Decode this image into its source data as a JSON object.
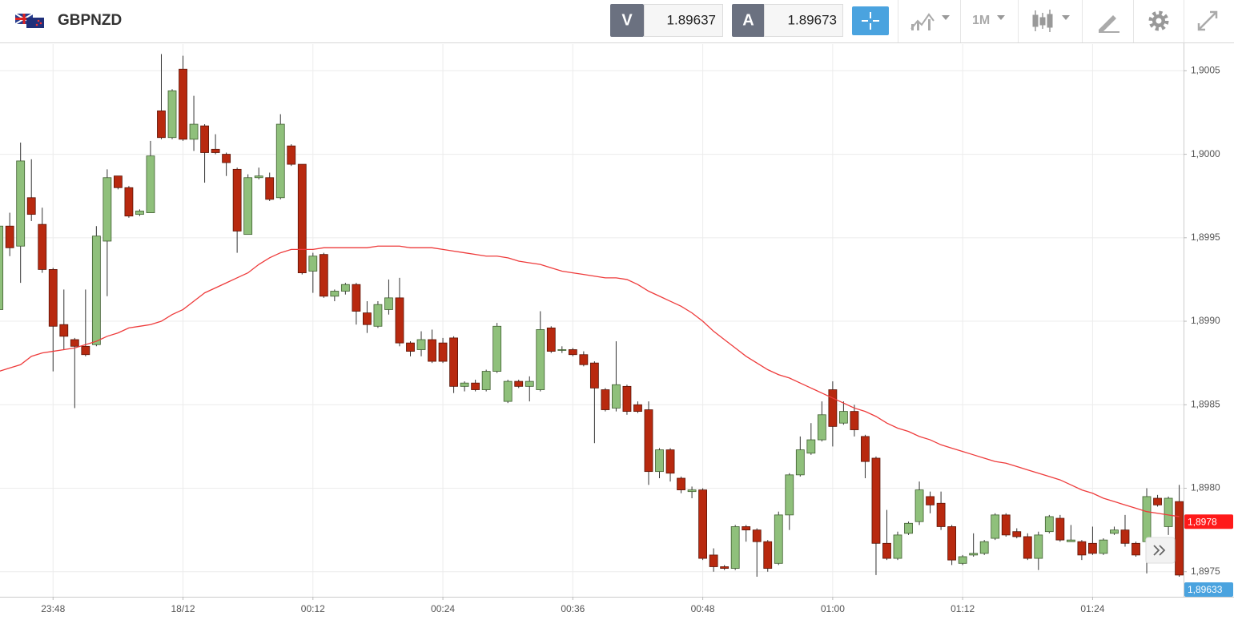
{
  "header": {
    "symbol": "GBPNZD",
    "bid_label": "V",
    "bid": "1.89637",
    "ask_label": "A",
    "ask": "1.89673",
    "timeframe": "1M"
  },
  "chart_data": {
    "type": "candlestick",
    "x": [
      -17,
      -16,
      -15,
      -14,
      -13,
      -12,
      -11,
      -10,
      -9,
      -8,
      -7,
      -6,
      -5,
      -4,
      -3,
      -2,
      -1,
      0,
      1,
      2,
      3,
      4,
      5,
      6,
      7,
      8,
      9,
      10,
      11,
      12,
      13,
      14,
      15,
      16,
      17,
      18,
      19,
      20,
      21,
      22,
      23,
      24,
      25,
      26,
      27,
      28,
      29,
      30,
      31,
      32,
      33,
      34,
      35,
      36,
      37,
      38,
      39,
      40,
      41,
      42,
      43,
      44,
      45,
      46,
      47,
      48,
      49,
      50,
      51,
      52,
      53,
      54,
      55,
      56,
      57,
      58,
      59,
      60,
      61,
      62,
      63,
      64,
      65,
      66,
      67,
      68,
      69,
      70,
      71,
      72,
      73,
      74,
      75,
      76,
      77,
      78,
      79,
      80,
      81,
      82,
      83,
      84,
      85,
      86,
      87,
      88,
      89,
      90,
      91,
      92
    ],
    "open": [
      1.89907,
      1.89957,
      1.89945,
      1.89974,
      1.89958,
      1.89931,
      1.89898,
      1.89889,
      1.89885,
      1.89886,
      1.89948,
      1.89987,
      1.8998,
      1.89964,
      1.89965,
      1.90026,
      1.9001,
      1.90051,
      1.90009,
      1.90017,
      1.90003,
      1.9,
      1.89991,
      1.89952,
      1.89986,
      1.89986,
      1.89974,
      1.90005,
      1.89994,
      1.8993,
      1.8994,
      1.89915,
      1.89918,
      1.89922,
      1.89905,
      1.89897,
      1.89907,
      1.89914,
      1.89887,
      1.89883,
      1.89889,
      1.89887,
      1.8989,
      1.89861,
      1.89863,
      1.89859,
      1.8987,
      1.89852,
      1.89864,
      1.89861,
      1.89859,
      1.89896,
      1.89883,
      1.89883,
      1.8988,
      1.89875,
      1.89859,
      1.89848,
      1.89861,
      1.8985,
      1.89847,
      1.8981,
      1.89823,
      1.89806,
      1.89798,
      1.89799,
      1.8976,
      1.89753,
      1.89752,
      1.89777,
      1.89775,
      1.89768,
      1.89755,
      1.89784,
      1.89808,
      1.89821,
      1.89829,
      1.89859,
      1.89839,
      1.89846,
      1.89831,
      1.89818,
      1.89767,
      1.89758,
      1.89773,
      1.8978,
      1.89795,
      1.89791,
      1.89777,
      1.89755,
      1.8976,
      1.89761,
      1.8977,
      1.89784,
      1.89774,
      1.89771,
      1.89758,
      1.89774,
      1.89782,
      1.89768,
      1.89768,
      1.89767,
      1.89761,
      1.89773,
      1.89775,
      1.89767,
      1.89768,
      1.89794,
      1.89777,
      1.89792
    ],
    "high": [
      1.89958,
      1.89965,
      1.90007,
      1.89997,
      1.89968,
      1.89932,
      1.89919,
      1.8989,
      1.89919,
      1.89957,
      1.89991,
      1.89987,
      1.89981,
      1.89967,
      1.90008,
      1.9006,
      1.90039,
      1.90059,
      1.90035,
      1.90018,
      1.90012,
      1.90001,
      1.89992,
      1.89988,
      1.89992,
      1.89989,
      1.90024,
      1.90006,
      1.89994,
      1.89941,
      1.89941,
      1.89919,
      1.89923,
      1.89923,
      1.89912,
      1.89912,
      1.89925,
      1.89926,
      1.89888,
      1.89894,
      1.89895,
      1.8989,
      1.89891,
      1.89864,
      1.89865,
      1.89871,
      1.89899,
      1.89865,
      1.89865,
      1.89867,
      1.89906,
      1.89897,
      1.89885,
      1.89884,
      1.89882,
      1.89876,
      1.8986,
      1.89888,
      1.89862,
      1.89852,
      1.89852,
      1.89824,
      1.89824,
      1.89807,
      1.89801,
      1.898,
      1.89764,
      1.89754,
      1.89778,
      1.89778,
      1.89776,
      1.89769,
      1.89786,
      1.89809,
      1.89831,
      1.89839,
      1.89852,
      1.89864,
      1.89852,
      1.8985,
      1.89832,
      1.89819,
      1.89787,
      1.89774,
      1.8978,
      1.89804,
      1.89798,
      1.89798,
      1.89778,
      1.8976,
      1.89773,
      1.89769,
      1.89785,
      1.89785,
      1.89776,
      1.89773,
      1.89774,
      1.89784,
      1.89784,
      1.89778,
      1.89769,
      1.89777,
      1.8977,
      1.89777,
      1.89784,
      1.89768,
      1.898,
      1.89796,
      1.89795,
      1.89802
    ],
    "low": [
      1.89905,
      1.89939,
      1.89923,
      1.8996,
      1.89929,
      1.8987,
      1.89883,
      1.89848,
      1.89879,
      1.89885,
      1.89915,
      1.89979,
      1.89962,
      1.89963,
      1.89965,
      1.90009,
      1.90009,
      1.90008,
      1.90002,
      1.89983,
      1.9,
      1.89987,
      1.89941,
      1.89952,
      1.89985,
      1.89972,
      1.89973,
      1.89993,
      1.89928,
      1.89917,
      1.89914,
      1.89912,
      1.89916,
      1.89898,
      1.89893,
      1.89896,
      1.89904,
      1.89885,
      1.89879,
      1.89879,
      1.89875,
      1.89875,
      1.89857,
      1.89858,
      1.89858,
      1.89858,
      1.89869,
      1.89851,
      1.8986,
      1.89852,
      1.89858,
      1.89881,
      1.89881,
      1.89879,
      1.89873,
      1.89827,
      1.89846,
      1.89846,
      1.89844,
      1.89845,
      1.89802,
      1.89806,
      1.89804,
      1.89797,
      1.89794,
      1.89757,
      1.8975,
      1.89751,
      1.89751,
      1.89768,
      1.89747,
      1.8975,
      1.89754,
      1.89775,
      1.89807,
      1.8982,
      1.89828,
      1.89825,
      1.89838,
      1.89831,
      1.89806,
      1.89748,
      1.89757,
      1.89757,
      1.89772,
      1.89778,
      1.89785,
      1.89775,
      1.89754,
      1.89754,
      1.89759,
      1.8976,
      1.89769,
      1.89771,
      1.8977,
      1.89757,
      1.89751,
      1.89773,
      1.89768,
      1.89768,
      1.89757,
      1.8976,
      1.8976,
      1.89772,
      1.89765,
      1.89759,
      1.89749,
      1.89789,
      1.89772,
      1.89747
    ],
    "close": [
      1.89957,
      1.89944,
      1.89996,
      1.89964,
      1.89931,
      1.89897,
      1.89891,
      1.89885,
      1.8988,
      1.89951,
      1.89986,
      1.8998,
      1.89963,
      1.89966,
      1.89999,
      1.9001,
      1.90038,
      1.90009,
      1.90018,
      1.90001,
      1.90001,
      1.89995,
      1.89954,
      1.89986,
      1.89987,
      1.89973,
      1.90018,
      1.89994,
      1.89929,
      1.89939,
      1.89915,
      1.89918,
      1.89922,
      1.89906,
      1.89898,
      1.8991,
      1.89914,
      1.89887,
      1.89882,
      1.89889,
      1.89876,
      1.89876,
      1.89861,
      1.89863,
      1.89859,
      1.8987,
      1.89897,
      1.89864,
      1.89861,
      1.89864,
      1.89895,
      1.89882,
      1.89883,
      1.8988,
      1.89874,
      1.8986,
      1.89847,
      1.89862,
      1.89846,
      1.89846,
      1.8981,
      1.89823,
      1.89809,
      1.89799,
      1.89799,
      1.89758,
      1.89753,
      1.89752,
      1.89777,
      1.89775,
      1.89768,
      1.89752,
      1.89784,
      1.89808,
      1.89823,
      1.89829,
      1.89844,
      1.89837,
      1.89846,
      1.89835,
      1.89816,
      1.89767,
      1.89758,
      1.89772,
      1.89779,
      1.89799,
      1.8979,
      1.89777,
      1.89757,
      1.89759,
      1.89761,
      1.89768,
      1.89784,
      1.89772,
      1.89771,
      1.89758,
      1.89772,
      1.89783,
      1.89769,
      1.89769,
      1.8976,
      1.89761,
      1.89769,
      1.89775,
      1.89767,
      1.8976,
      1.89795,
      1.8979,
      1.89794,
      1.89748
    ],
    "up_color": "#8fc07b",
    "down_color": "#b8290f",
    "overlays": [
      {
        "color": "#ee3b3b",
        "values": [
          1.8987,
          1.89872,
          1.89874,
          1.89879,
          1.89881,
          1.89882,
          1.89883,
          1.89884,
          1.89886,
          1.89888,
          1.89891,
          1.89893,
          1.89896,
          1.89897,
          1.89898,
          1.899,
          1.89904,
          1.89907,
          1.89912,
          1.89917,
          1.8992,
          1.89923,
          1.89926,
          1.89929,
          1.89934,
          1.89938,
          1.89941,
          1.89943,
          1.89943,
          1.89943,
          1.89944,
          1.89944,
          1.89944,
          1.89944,
          1.89944,
          1.89945,
          1.89945,
          1.89945,
          1.89944,
          1.89944,
          1.89944,
          1.89943,
          1.89942,
          1.89941,
          1.8994,
          1.89939,
          1.89939,
          1.89938,
          1.89936,
          1.89935,
          1.89934,
          1.89932,
          1.8993,
          1.89929,
          1.89928,
          1.89927,
          1.89926,
          1.89926,
          1.89925,
          1.89922,
          1.89918,
          1.89915,
          1.89912,
          1.89909,
          1.89905,
          1.899,
          1.89894,
          1.89889,
          1.89884,
          1.89879,
          1.89875,
          1.89871,
          1.89868,
          1.89866,
          1.89863,
          1.8986,
          1.89857,
          1.89854,
          1.89851,
          1.89848,
          1.89846,
          1.89843,
          1.89839,
          1.89836,
          1.89834,
          1.89831,
          1.89829,
          1.89826,
          1.89824,
          1.89822,
          1.8982,
          1.89818,
          1.89816,
          1.89815,
          1.89813,
          1.89811,
          1.89809,
          1.89807,
          1.89805,
          1.89802,
          1.89799,
          1.89797,
          1.89794,
          1.89792,
          1.8979,
          1.89788,
          1.89786,
          1.89785,
          1.89784,
          1.89783
        ]
      }
    ],
    "xlim": [
      -16.9,
      92.4
    ],
    "xticks": [
      {
        "value": -12,
        "label": "23:48"
      },
      {
        "value": 0,
        "label": "18/12"
      },
      {
        "value": 12,
        "label": "00:12"
      },
      {
        "value": 24,
        "label": "00:24"
      },
      {
        "value": 36,
        "label": "00:36"
      },
      {
        "value": 48,
        "label": "00:48"
      },
      {
        "value": 60,
        "label": "01:00"
      },
      {
        "value": 72,
        "label": "01:12"
      },
      {
        "value": 84,
        "label": "01:24"
      }
    ],
    "ylim": [
      1.89735,
      1.90066
    ],
    "yticks": [
      {
        "value": 1.8975,
        "label": "1,8975"
      },
      {
        "value": 1.898,
        "label": "1,8980"
      },
      {
        "value": 1.8985,
        "label": "1,8985"
      },
      {
        "value": 1.899,
        "label": "1,8990"
      },
      {
        "value": 1.8995,
        "label": "1,8995"
      },
      {
        "value": 1.9,
        "label": "1,9000"
      },
      {
        "value": 1.9005,
        "label": "1,9005"
      }
    ],
    "grid": true,
    "price_tags": [
      {
        "value": 1.8978,
        "label": "1,8978",
        "color": "#ff1a1a"
      },
      {
        "value": 1.89633,
        "label": "1,89633",
        "color": "#4aa3df"
      }
    ]
  }
}
